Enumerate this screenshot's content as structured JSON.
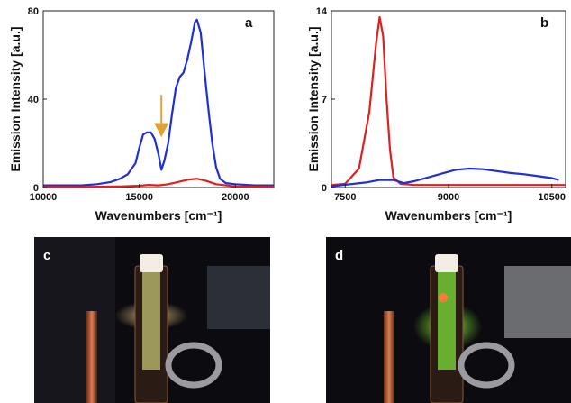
{
  "chart_data": [
    {
      "panel": "a",
      "type": "line",
      "xlabel": "Wavenumbers [cm⁻¹]",
      "ylabel": "Emission Intensity [a.u.]",
      "xlim": [
        10000,
        22000
      ],
      "ylim": [
        0,
        80
      ],
      "xticks": [
        "10000",
        "15000",
        "20000"
      ],
      "yticks": [
        "0",
        "40",
        "80"
      ],
      "xtick_values": [
        10000,
        15000,
        20000
      ],
      "ytick_values": [
        0,
        40,
        80
      ],
      "annotations": [
        {
          "type": "arrow",
          "color": "#e0a13a",
          "x": 16150,
          "y_from": 42,
          "y_to": 26
        }
      ],
      "series": [
        {
          "color": "#1f2fd6",
          "x": [
            10000,
            11000,
            12000,
            12800,
            13500,
            14000,
            14400,
            14800,
            15000,
            15200,
            15400,
            15600,
            15800,
            16000,
            16150,
            16300,
            16500,
            16700,
            16900,
            17100,
            17300,
            17500,
            17700,
            17900,
            18000,
            18200,
            18400,
            18600,
            18800,
            19000,
            19200,
            19500,
            20000,
            21000,
            22000
          ],
          "y": [
            1,
            1,
            1,
            1.5,
            2.5,
            4,
            6,
            11,
            18,
            24,
            25,
            25,
            22,
            15,
            8,
            12,
            20,
            33,
            45,
            50,
            52,
            58,
            66,
            75,
            76,
            70,
            52,
            35,
            20,
            9,
            4,
            2,
            1.5,
            1,
            1
          ]
        },
        {
          "color": "#e01f1f",
          "x": [
            10000,
            12000,
            14000,
            15000,
            15500,
            16000,
            16500,
            17000,
            17500,
            18000,
            18500,
            19000,
            20000,
            22000
          ],
          "y": [
            0.3,
            0.3,
            0.5,
            0.8,
            1.2,
            1.0,
            1.5,
            2.5,
            3.5,
            4.0,
            3.0,
            1.5,
            0.5,
            0.3
          ]
        }
      ]
    },
    {
      "panel": "b",
      "type": "line",
      "xlabel": "Wavenumbers [cm⁻¹]",
      "ylabel": "Emission Intensity [a.u.]",
      "xlim": [
        7300,
        10700
      ],
      "ylim": [
        0,
        14
      ],
      "xticks": [
        "7500",
        "9000",
        "10500"
      ],
      "yticks": [
        "0",
        "7",
        "14"
      ],
      "xtick_values": [
        7500,
        9000,
        10500
      ],
      "ytick_values": [
        0,
        7,
        14
      ],
      "series": [
        {
          "color": "#e01f1f",
          "x": [
            7300,
            7500,
            7700,
            7850,
            7950,
            8000,
            8050,
            8100,
            8150,
            8200,
            8300,
            8500,
            9000,
            10000,
            10700
          ],
          "y": [
            0.2,
            0.3,
            1.5,
            6,
            11.5,
            13.5,
            12,
            7,
            3,
            0.8,
            0.3,
            0.2,
            0.2,
            0.2,
            0.2
          ],
          "fine": true
        },
        {
          "color": "#1f2fd6",
          "x": [
            7300,
            7800,
            8000,
            8200,
            8350,
            8500,
            8700,
            8900,
            9100,
            9300,
            9500,
            9700,
            9900,
            10100,
            10300,
            10500,
            10600
          ],
          "y": [
            0.1,
            0.4,
            0.6,
            0.6,
            0.35,
            0.5,
            0.8,
            1.1,
            1.4,
            1.5,
            1.45,
            1.3,
            1.15,
            1.05,
            0.9,
            0.75,
            0.6
          ]
        }
      ]
    }
  ],
  "photos": [
    {
      "label": "c",
      "liquid_color": "#b8b86a"
    },
    {
      "label": "d",
      "liquid_color": "#7ee03a"
    }
  ]
}
